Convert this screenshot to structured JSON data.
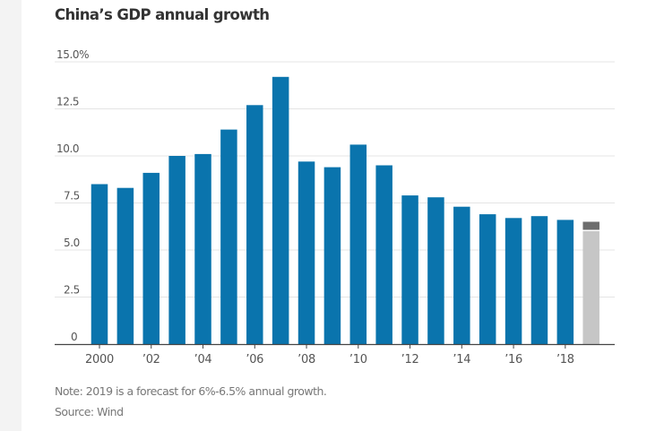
{
  "colors": {
    "bar": "#0a74ad",
    "forecast_low": "#c6c6c6",
    "forecast_range": "#6d6d6d",
    "gridline": "#e4e4e4",
    "axis": "#444444",
    "background_strip": "#f3f3f3"
  },
  "chart_data": {
    "type": "bar",
    "title": "China’s GDP annual growth",
    "xlabel": "",
    "ylabel": "",
    "unit": "%",
    "ylim": [
      0,
      15
    ],
    "grid": true,
    "categories": [
      "2000",
      "2001",
      "2002",
      "2003",
      "2004",
      "2005",
      "2006",
      "2007",
      "2008",
      "2009",
      "2010",
      "2011",
      "2012",
      "2013",
      "2014",
      "2015",
      "2016",
      "2017",
      "2018",
      "2019"
    ],
    "values": [
      8.5,
      8.3,
      9.1,
      10.0,
      10.1,
      11.4,
      12.7,
      14.2,
      9.7,
      9.4,
      10.6,
      9.5,
      7.9,
      7.8,
      7.3,
      6.9,
      6.7,
      6.8,
      6.6,
      null
    ],
    "forecast": {
      "category": "2019",
      "low": 6.0,
      "high": 6.5
    },
    "y_ticks": [
      {
        "value": 0,
        "label": "0"
      },
      {
        "value": 2.5,
        "label": "2.5"
      },
      {
        "value": 5.0,
        "label": "5.0"
      },
      {
        "value": 7.5,
        "label": "7.5"
      },
      {
        "value": 10.0,
        "label": "10.0"
      },
      {
        "value": 12.5,
        "label": "12.5"
      },
      {
        "value": 15.0,
        "label": "15.0%"
      }
    ],
    "x_ticks": [
      {
        "category": "2000",
        "label": "2000"
      },
      {
        "category": "2002",
        "label": "’02"
      },
      {
        "category": "2004",
        "label": "’04"
      },
      {
        "category": "2006",
        "label": "’06"
      },
      {
        "category": "2008",
        "label": "’08"
      },
      {
        "category": "2010",
        "label": "’10"
      },
      {
        "category": "2012",
        "label": "’12"
      },
      {
        "category": "2014",
        "label": "’14"
      },
      {
        "category": "2016",
        "label": "’16"
      },
      {
        "category": "2018",
        "label": "’18"
      }
    ],
    "note": "Note: 2019 is a forecast for 6%-6.5% annual growth.",
    "source": "Source: Wind"
  }
}
